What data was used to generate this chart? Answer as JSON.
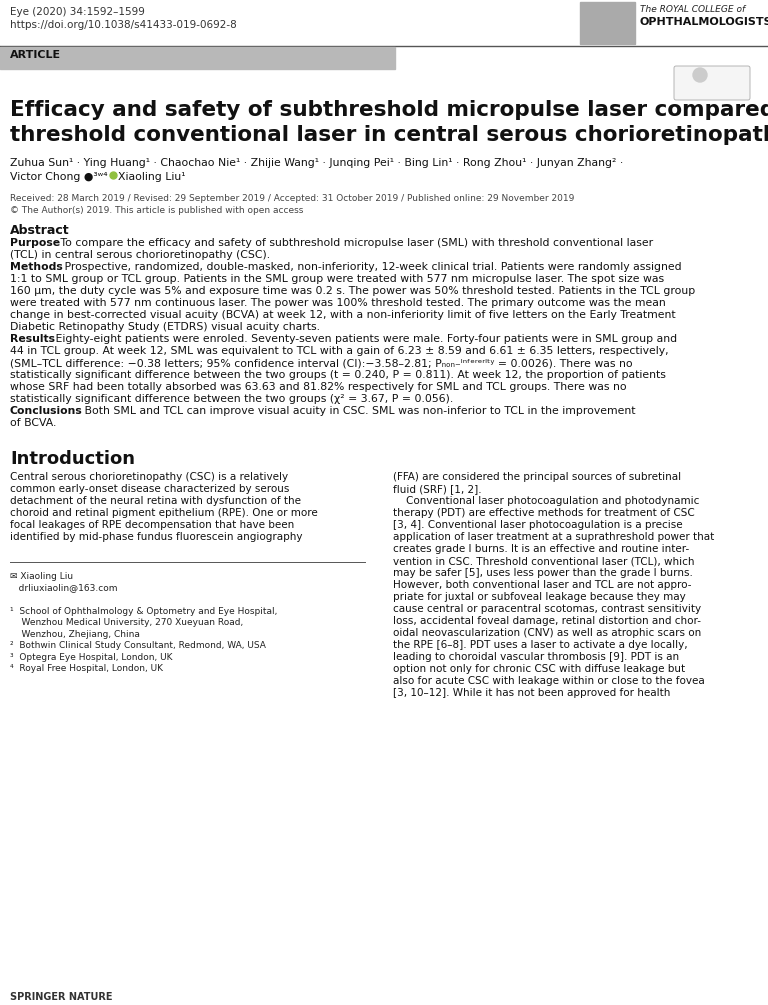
{
  "journal_line1": "Eye (2020) 34:1592–1599",
  "journal_line2": "https://doi.org/10.1038/s41433-019-0692-8",
  "article_label": "ARTICLE",
  "title_line1": "Efficacy and safety of subthreshold micropulse laser compared with",
  "title_line2": "threshold conventional laser in central serous chorioretinopathy",
  "authors_line1": "Zuhua Sun¹ · Ying Huang¹ · Chaochao Nie¹ · Zhijie Wang¹ · Junqing Pei¹ · Bing Lin¹ · Rong Zhou¹ · Junyan Zhang² ·",
  "authors_line2": "Victor Chong ●³ʷ⁴ · Xiaoling Liu¹",
  "dates": "Received: 28 March 2019 / Revised: 29 September 2019 / Accepted: 31 October 2019 / Published online: 29 November 2019",
  "open_access": "© The Author(s) 2019. This article is published with open access",
  "abstract_label": "Abstract",
  "purpose_bold": "Purpose",
  "methods_bold": "Methods",
  "results_bold": "Results",
  "conclusions_bold": "Conclusions",
  "intro_header": "Introduction",
  "purpose_lines": [
    [
      "bold",
      "Purpose"
    ],
    [
      "normal",
      " To compare the efficacy and safety of subthreshold micropulse laser (SML) with threshold conventional laser"
    ],
    [
      "normal",
      "(TCL) in central serous chorioretinopathy (CSC)."
    ]
  ],
  "methods_lines": [
    [
      "bold",
      "Methods"
    ],
    [
      "normal",
      " Prospective, randomized, double-masked, non-inferiority, 12-week clinical trial. Patients were randomly assigned"
    ],
    [
      "normal",
      "1:1 to SML group or TCL group. Patients in the SML group were treated with 577 nm micropulse laser. The spot size was"
    ],
    [
      "normal",
      "160 μm, the duty cycle was 5% and exposure time was 0.2 s. The power was 50% threshold tested. Patients in the TCL group"
    ],
    [
      "normal",
      "were treated with 577 nm continuous laser. The power was 100% threshold tested. The primary outcome was the mean"
    ],
    [
      "normal",
      "change in best-corrected visual acuity (BCVA) at week 12, with a non-inferiority limit of five letters on the Early Treatment"
    ],
    [
      "normal",
      "Diabetic Retinopathy Study (ETDRS) visual acuity charts."
    ]
  ],
  "results_lines": [
    [
      "bold",
      "Results"
    ],
    [
      "normal",
      " Eighty-eight patients were enroled. Seventy-seven patients were male. Forty-four patients were in SML group and"
    ],
    [
      "normal",
      "44 in TCL group. At week 12, SML was equivalent to TCL with a gain of 6.23 ± 8.59 and 6.61 ± 6.35 letters, respectively,"
    ],
    [
      "normal",
      "(SML–TCL difference: −0.38 letters; 95% confidence interval (CI):−3.58–2.81; Pₙₒₙ₋ᴵⁿᶠᵉʳᵉʳᴵᵗʸ = 0.0026). There was no"
    ],
    [
      "normal",
      "statistically significant difference between the two groups (t = 0.240, P = 0.811). At week 12, the proportion of patients"
    ],
    [
      "normal",
      "whose SRF had been totally absorbed was 63.63 and 81.82% respectively for SML and TCL groups. There was no"
    ],
    [
      "normal",
      "statistically significant difference between the two groups (χ² = 3.67, P = 0.056)."
    ]
  ],
  "conclusions_lines": [
    [
      "bold",
      "Conclusions"
    ],
    [
      "normal",
      " Both SML and TCL can improve visual acuity in CSC. SML was non-inferior to TCL in the improvement"
    ],
    [
      "normal",
      "of BCVA."
    ]
  ],
  "col1_lines": [
    "Central serous chorioretinopathy (CSC) is a relatively",
    "common early-onset disease characterized by serous",
    "detachment of the neural retina with dysfunction of the",
    "choroid and retinal pigment epithelium (RPE). One or more",
    "focal leakages of RPE decompensation that have been",
    "identified by mid-phase fundus fluorescein angiography"
  ],
  "col2_lines": [
    "(FFA) are considered the principal sources of subretinal",
    "fluid (SRF) [1, 2].",
    "    Conventional laser photocoagulation and photodynamic",
    "therapy (PDT) are effective methods for treatment of CSC",
    "[3, 4]. Conventional laser photocoagulation is a precise",
    "application of laser treatment at a suprathreshold power that",
    "creates grade I burns. It is an effective and routine inter-",
    "vention in CSC. Threshold conventional laser (TCL), which",
    "may be safer [5], uses less power than the grade I burns.",
    "However, both conventional laser and TCL are not appro-",
    "priate for juxtal or subfoveal leakage because they may",
    "cause central or paracentral scotomas, contrast sensitivity",
    "loss, accidental foveal damage, retinal distortion and chor-",
    "oidal neovascularization (CNV) as well as atrophic scars on",
    "the RPE [6–8]. PDT uses a laser to activate a dye locally,",
    "leading to choroidal vascular thrombosis [9]. PDT is an",
    "option not only for chronic CSC with diffuse leakage but",
    "also for acute CSC with leakage within or close to the fovea",
    "[3, 10–12]. While it has not been approved for health"
  ],
  "footnote_email": "✉ Xiaoling Liu",
  "footnote_email2": "   drliuxiaolin@163.com",
  "footnote1": "¹  School of Ophthalmology & Optometry and Eye Hospital,",
  "footnote1b": "    Wenzhou Medical University, 270 Xueyuan Road,",
  "footnote1c": "    Wenzhou, Zhejiang, China",
  "footnote2": "²  Bothwin Clinical Study Consultant, Redmond, WA, USA",
  "footnote3": "³  Optegra Eye Hospital, London, UK",
  "footnote4": "⁴  Royal Free Hospital, London, UK",
  "springer": "SPRINGER NATURE",
  "bg_color": "#ffffff",
  "article_bar_color": "#b8b8b8",
  "text_color": "#111111",
  "light_gray": "#555555"
}
